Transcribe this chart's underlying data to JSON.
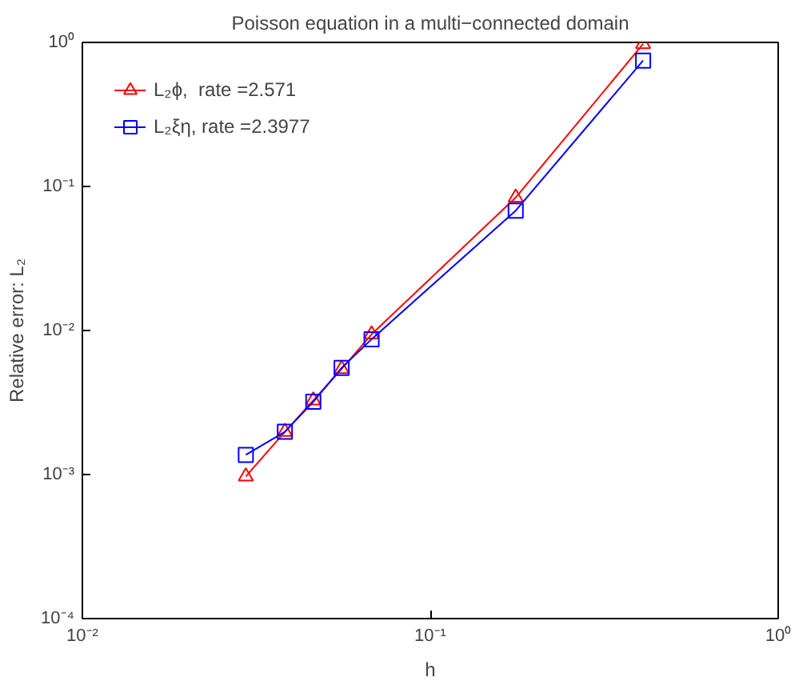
{
  "chart_data": {
    "type": "line",
    "title": "Poisson equation in a multi−connected domain",
    "xlabel": "h",
    "ylabel": "Relative error: L₂",
    "log": "xy",
    "grid": false,
    "legend": "top left",
    "line_style": "solid",
    "x": [
      0.0295,
      0.0382,
      0.0461,
      0.0556,
      0.0678,
      0.176,
      0.409
    ],
    "xlim": [
      0.01,
      1
    ],
    "xticks": [
      {
        "value": 0.01,
        "label": "10⁻²"
      },
      {
        "value": 0.1,
        "label": "10⁻¹"
      },
      {
        "value": 1,
        "label": "10⁰"
      }
    ],
    "ylim": [
      0.0001,
      1
    ],
    "yticks": [
      {
        "value": 0.0001,
        "label": "10⁻⁴"
      },
      {
        "value": 0.001,
        "label": "10⁻³"
      },
      {
        "value": 0.01,
        "label": "10⁻²"
      },
      {
        "value": 0.1,
        "label": "10⁻¹"
      },
      {
        "value": 1,
        "label": "10⁰"
      }
    ],
    "series": [
      {
        "name": "L₂ϕ,  rate =2.571",
        "color": "#ff0000",
        "marker": "triangle",
        "values": [
          0.00097,
          0.00198,
          0.00327,
          0.0054,
          0.0094,
          0.0838,
          0.975
        ]
      },
      {
        "name": "L₂ξη, rate =2.3977",
        "color": "#0000ff",
        "marker": "square",
        "values": [
          0.00137,
          0.00198,
          0.0032,
          0.0055,
          0.0087,
          0.068,
          0.748
        ]
      }
    ]
  }
}
